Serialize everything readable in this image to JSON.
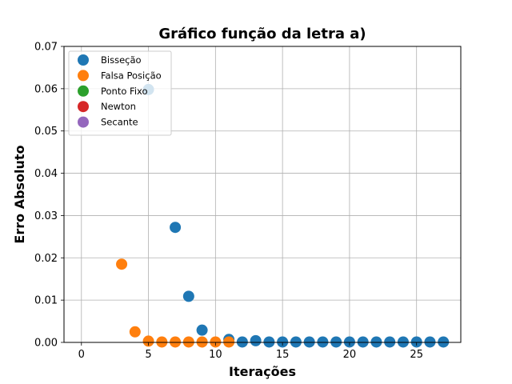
{
  "chart_data": {
    "type": "scatter",
    "title": "Gráfico função da letra a)",
    "xlabel": "Iterações",
    "ylabel": "Erro Absoluto",
    "xlim": [
      -1.3,
      28.3
    ],
    "ylim": [
      0,
      0.07
    ],
    "xticks": [
      0,
      5,
      10,
      15,
      20,
      25
    ],
    "yticks": [
      0.0,
      0.01,
      0.02,
      0.03,
      0.04,
      0.05,
      0.06,
      0.07
    ],
    "ytick_labels": [
      "0.00",
      "0.01",
      "0.02",
      "0.03",
      "0.04",
      "0.05",
      "0.06",
      "0.07"
    ],
    "grid": true,
    "legend_position": "top-left",
    "series": [
      {
        "name": "Bisseção",
        "color": "#1f77b4",
        "x": [
          5,
          7,
          8,
          9,
          11,
          12,
          13,
          14,
          15,
          16,
          17,
          18,
          19,
          20,
          21,
          22,
          23,
          24,
          25,
          26,
          27
        ],
        "y": [
          0.0598,
          0.0272,
          0.0109,
          0.0029,
          0.0007,
          0.0001,
          0.0004,
          0.0001,
          0.0001,
          0.0001,
          0.0001,
          0.0001,
          0.0001,
          0.0001,
          0.0001,
          0.0001,
          0.0001,
          0.0001,
          0.0001,
          0.0001,
          0.0001
        ]
      },
      {
        "name": "Falsa Posição",
        "color": "#ff7f0e",
        "x": [
          3,
          4,
          5,
          6,
          7,
          8,
          9,
          10,
          11
        ],
        "y": [
          0.0185,
          0.0025,
          0.0003,
          0.0001,
          0.0001,
          0.0001,
          0.0001,
          0.0001,
          0.0001
        ]
      },
      {
        "name": "Ponto Fixo",
        "color": "#2ca02c",
        "x": [],
        "y": []
      },
      {
        "name": "Newton",
        "color": "#d62728",
        "x": [],
        "y": []
      },
      {
        "name": "Secante",
        "color": "#9467bd",
        "x": [],
        "y": []
      }
    ]
  }
}
